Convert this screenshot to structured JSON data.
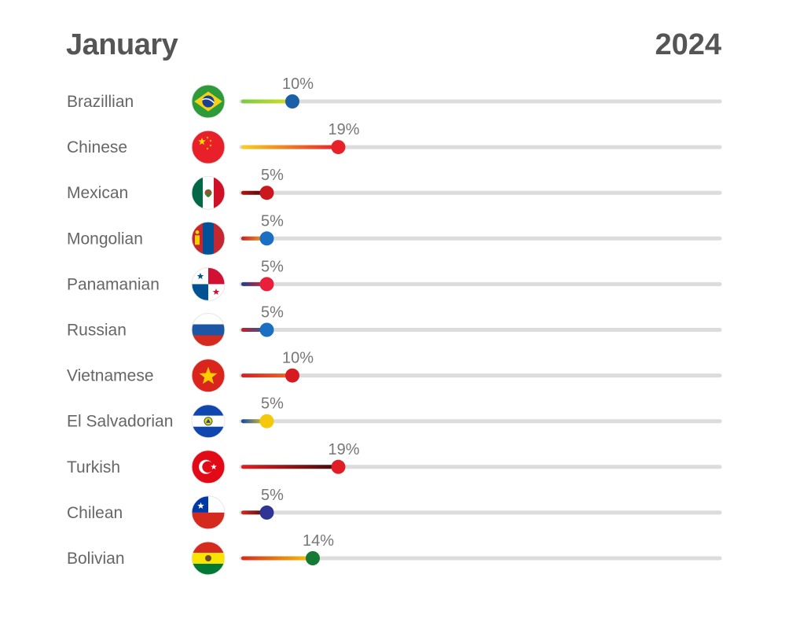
{
  "header": {
    "month": "January",
    "year": "2024"
  },
  "chart_data": {
    "type": "bar",
    "title": "",
    "xlabel": "",
    "ylabel": "",
    "xlim": [
      0,
      100
    ],
    "value_suffix": "%",
    "grid": false,
    "categories": [
      "Brazillian",
      "Chinese",
      "Mexican",
      "Mongolian",
      "Panamanian",
      "Russian",
      "Vietnamese",
      "El Salvadorian",
      "Turkish",
      "Chilean",
      "Bolivian"
    ],
    "values": [
      10,
      19,
      5,
      5,
      5,
      5,
      10,
      5,
      19,
      5,
      14
    ],
    "colors": [
      {
        "start": "#7ac943",
        "end": "#d7df23",
        "dot": "#1b5fa6",
        "flag": "brazil-flag-icon"
      },
      {
        "start": "#f6d21f",
        "end": "#e8202a",
        "dot": "#e8202a",
        "flag": "china-flag-icon"
      },
      {
        "start": "#b51414",
        "end": "#3a0a0a",
        "dot": "#c9191e",
        "flag": "mexico-flag-icon"
      },
      {
        "start": "#c81d25",
        "end": "#f0b323",
        "dot": "#1b6fc2",
        "flag": "mongolia-flag-icon"
      },
      {
        "start": "#1b3f8f",
        "end": "#e8202a",
        "dot": "#e8203a",
        "flag": "panama-flag-icon"
      },
      {
        "start": "#c81d25",
        "end": "#1b5fa6",
        "dot": "#1b6fc2",
        "flag": "russia-flag-icon"
      },
      {
        "start": "#d31f26",
        "end": "#f26a21",
        "dot": "#d71a21",
        "flag": "vietnam-flag-icon"
      },
      {
        "start": "#0f47af",
        "end": "#f4d10b",
        "dot": "#f4c90b",
        "flag": "el-salvador-flag-icon"
      },
      {
        "start": "#e41e20",
        "end": "#3b0b0b",
        "dot": "#e01e24",
        "flag": "turkey-flag-icon"
      },
      {
        "start": "#d52b1e",
        "end": "#3b0b0b",
        "dot": "#2f3592",
        "flag": "chile-flag-icon"
      },
      {
        "start": "#d52b1e",
        "end": "#f4c90b",
        "dot": "#157a35",
        "flag": "bolivia-flag-icon"
      }
    ]
  }
}
